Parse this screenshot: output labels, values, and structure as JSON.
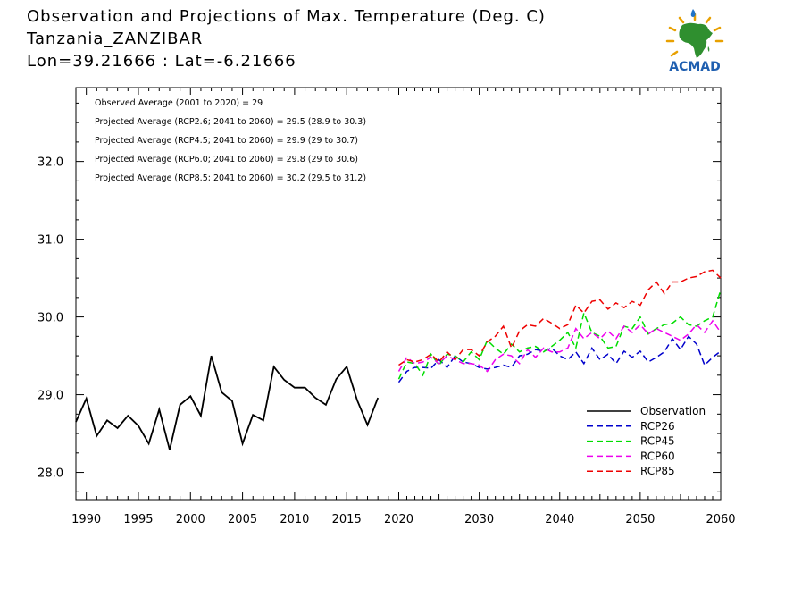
{
  "header": {
    "title": "Observation and Projections of Max. Temperature (Deg. C)",
    "location": "Tanzania_ZANZIBAR",
    "coords": "Lon=39.21666 : Lat=-6.21666"
  },
  "logo": {
    "text": "ACMAD",
    "icon": "africa-map-icon"
  },
  "chart_data": {
    "type": "line",
    "xlim": [
      1989,
      2060
    ],
    "ylim": [
      27.65,
      32.95
    ],
    "x_ticks": [
      1990,
      1995,
      2000,
      2005,
      2010,
      2015,
      2020,
      2030,
      2040,
      2050,
      2060
    ],
    "x_tick_labels": [
      "1990",
      "1995",
      "2000",
      "2005",
      "2010",
      "2015",
      "2020",
      "2030",
      "2040",
      "2050",
      "2060"
    ],
    "y_ticks": [
      28.0,
      29.0,
      30.0,
      31.0,
      32.0
    ],
    "y_tick_labels": [
      "28.0",
      "29.0",
      "30.0",
      "31.0",
      "32.0"
    ],
    "grid": false,
    "legend_position": "bottom-right",
    "annotations": [
      "Observed Average (2001 to 2020) = 29",
      "Projected Average (RCP2.6; 2041 to 2060) = 29.5 (28.9 to 30.3)",
      "Projected Average (RCP4.5; 2041 to 2060) = 29.9 (29 to 30.7)",
      "Projected Average (RCP6.0; 2041 to 2060) = 29.8 (29 to 30.6)",
      "Projected Average (RCP8.5; 2041 to 2060) = 30.2 (29.5 to 31.2)"
    ],
    "series": [
      {
        "name": "Observation",
        "color": "#000000",
        "dash": "solid",
        "x": [
          1989,
          1990,
          1991,
          1992,
          1993,
          1994,
          1995,
          1996,
          1997,
          1998,
          1999,
          2000,
          2001,
          2002,
          2003,
          2004,
          2005,
          2006,
          2007,
          2008,
          2009,
          2010,
          2011,
          2012,
          2013,
          2014,
          2015,
          2016,
          2017,
          2018,
          2019
        ],
        "y": [
          28.65,
          28.95,
          28.47,
          28.67,
          28.57,
          28.73,
          28.6,
          28.37,
          28.81,
          28.29,
          28.87,
          28.98,
          28.73,
          29.5,
          29.03,
          28.92,
          28.37,
          28.74,
          28.67,
          29.36,
          29.19,
          29.09,
          29.09,
          28.96,
          28.87,
          29.2,
          29.36,
          28.93,
          28.61,
          28.96,
          null
        ]
      },
      {
        "name": "RCP26",
        "color": "#0000cc",
        "dash": "dashed",
        "x": [
          2020,
          2021,
          2022,
          2023,
          2024,
          2025,
          2026,
          2027,
          2028,
          2029,
          2030,
          2031,
          2032,
          2033,
          2034,
          2035,
          2036,
          2037,
          2038,
          2039,
          2040,
          2041,
          2042,
          2043,
          2044,
          2045,
          2046,
          2047,
          2048,
          2049,
          2050,
          2051,
          2052,
          2053,
          2054,
          2055,
          2056,
          2057,
          2058,
          2059,
          2060
        ],
        "y": [
          29.16,
          29.3,
          29.35,
          29.35,
          29.34,
          29.45,
          29.35,
          29.5,
          29.42,
          29.4,
          29.35,
          29.33,
          29.35,
          29.38,
          29.35,
          29.5,
          29.52,
          29.58,
          29.56,
          29.6,
          29.5,
          29.45,
          29.55,
          29.4,
          29.6,
          29.45,
          29.52,
          29.4,
          29.56,
          29.48,
          29.56,
          29.42,
          29.48,
          29.55,
          29.72,
          29.58,
          29.75,
          29.65,
          29.38,
          29.48,
          29.56
        ]
      },
      {
        "name": "RCP45",
        "color": "#00dd00",
        "dash": "dashed",
        "x": [
          2020,
          2021,
          2022,
          2023,
          2024,
          2025,
          2026,
          2027,
          2028,
          2029,
          2030,
          2031,
          2032,
          2033,
          2034,
          2035,
          2036,
          2037,
          2038,
          2039,
          2040,
          2041,
          2042,
          2043,
          2044,
          2045,
          2046,
          2047,
          2048,
          2049,
          2050,
          2051,
          2052,
          2053,
          2054,
          2055,
          2056,
          2057,
          2058,
          2059,
          2060
        ],
        "y": [
          29.2,
          29.42,
          29.4,
          29.25,
          29.52,
          29.38,
          29.52,
          29.5,
          29.42,
          29.55,
          29.45,
          29.7,
          29.6,
          29.52,
          29.65,
          29.55,
          29.6,
          29.62,
          29.55,
          29.62,
          29.7,
          29.8,
          29.6,
          30.05,
          29.8,
          29.75,
          29.6,
          29.62,
          29.88,
          29.85,
          30.0,
          29.78,
          29.85,
          29.9,
          29.92,
          30.0,
          29.9,
          29.88,
          29.95,
          30.0,
          30.35
        ]
      },
      {
        "name": "RCP60",
        "color": "#ee00ee",
        "dash": "dashed",
        "x": [
          2020,
          2021,
          2022,
          2023,
          2024,
          2025,
          2026,
          2027,
          2028,
          2029,
          2030,
          2031,
          2032,
          2033,
          2034,
          2035,
          2036,
          2037,
          2038,
          2039,
          2040,
          2041,
          2042,
          2043,
          2044,
          2045,
          2046,
          2047,
          2048,
          2049,
          2050,
          2051,
          2052,
          2053,
          2054,
          2055,
          2056,
          2057,
          2058,
          2059,
          2060
        ],
        "y": [
          29.3,
          29.48,
          29.4,
          29.42,
          29.48,
          29.4,
          29.5,
          29.45,
          29.4,
          29.4,
          29.38,
          29.3,
          29.45,
          29.52,
          29.5,
          29.4,
          29.58,
          29.48,
          29.6,
          29.55,
          29.55,
          29.6,
          29.85,
          29.72,
          29.8,
          29.72,
          29.82,
          29.72,
          29.88,
          29.8,
          29.9,
          29.78,
          29.85,
          29.8,
          29.75,
          29.7,
          29.78,
          29.9,
          29.8,
          29.95,
          29.8
        ]
      },
      {
        "name": "RCP85",
        "color": "#ee0000",
        "dash": "dashed",
        "x": [
          2020,
          2021,
          2022,
          2023,
          2024,
          2025,
          2026,
          2027,
          2028,
          2029,
          2030,
          2031,
          2032,
          2033,
          2034,
          2035,
          2036,
          2037,
          2038,
          2039,
          2040,
          2041,
          2042,
          2043,
          2044,
          2045,
          2046,
          2047,
          2048,
          2049,
          2050,
          2051,
          2052,
          2053,
          2054,
          2055,
          2056,
          2057,
          2058,
          2059,
          2060
        ],
        "y": [
          29.38,
          29.45,
          29.42,
          29.45,
          29.52,
          29.42,
          29.55,
          29.45,
          29.58,
          29.58,
          29.5,
          29.68,
          29.75,
          29.88,
          29.6,
          29.82,
          29.9,
          29.88,
          29.98,
          29.92,
          29.85,
          29.9,
          30.15,
          30.05,
          30.2,
          30.22,
          30.1,
          30.18,
          30.12,
          30.2,
          30.15,
          30.35,
          30.45,
          30.3,
          30.45,
          30.45,
          30.5,
          30.52,
          30.58,
          30.6,
          30.5
        ]
      }
    ]
  }
}
